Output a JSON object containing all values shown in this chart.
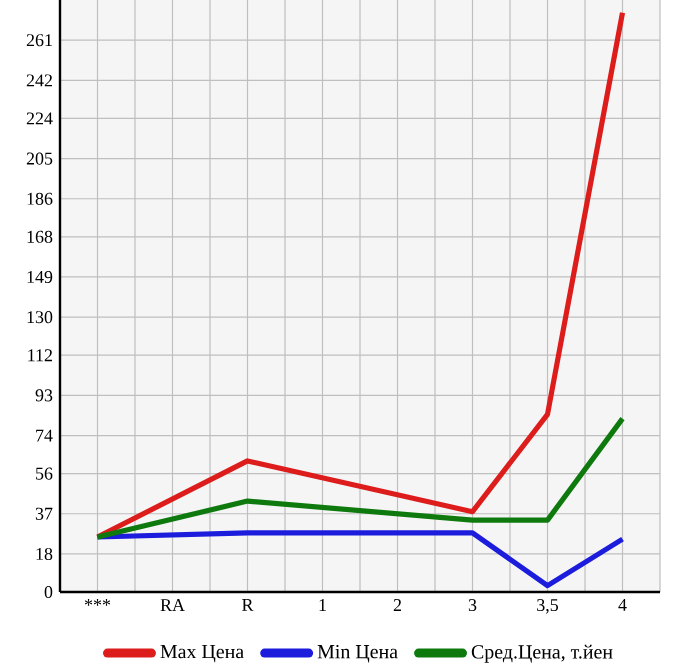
{
  "chart_data": {
    "type": "line",
    "categories": [
      "***",
      "RA",
      "R",
      "1",
      "2",
      "3",
      "3,5",
      "4"
    ],
    "series": [
      {
        "name": "Max Цена",
        "color": "#dd1c1c",
        "values": [
          26,
          null,
          62,
          null,
          null,
          38,
          84,
          274
        ]
      },
      {
        "name": "Min Цена",
        "color": "#1c1cdd",
        "values": [
          26,
          null,
          28,
          null,
          null,
          28,
          3,
          25
        ]
      },
      {
        "name": "Сред.Цена, т.йен",
        "color": "#0e7a0e",
        "values": [
          26,
          null,
          43,
          null,
          null,
          34,
          34,
          82
        ]
      }
    ],
    "ylim": [
      0,
      280
    ],
    "yticks": [
      0,
      18,
      37,
      56,
      74,
      93,
      112,
      130,
      149,
      168,
      186,
      205,
      224,
      242,
      261
    ],
    "grid": true,
    "legend": "bottom",
    "marker": "none",
    "line_style": "solid"
  }
}
